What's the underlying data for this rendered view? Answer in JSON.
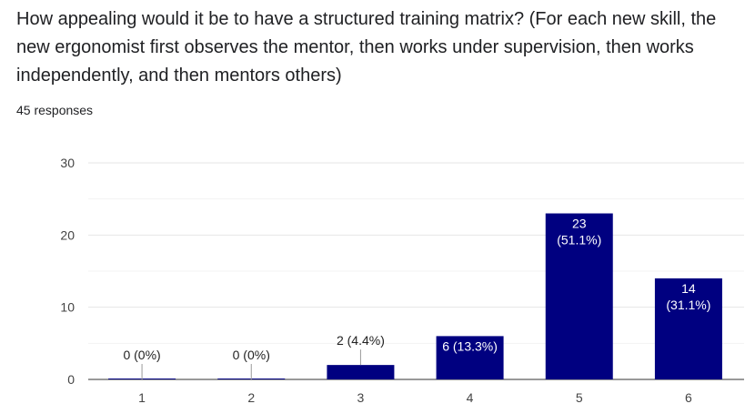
{
  "question": {
    "title": "How appealing would it be to have a structured training matrix? (For each new skill, the new ergonomist first observes the mentor, then works under supervision, then works independently, and then mentors others)",
    "response_count": "45 responses"
  },
  "colors": {
    "bar": "#000080",
    "grid": "#e6e6e6",
    "axis": "#333333",
    "text": "#202124"
  },
  "chart_data": {
    "type": "bar",
    "categories": [
      "1",
      "2",
      "3",
      "4",
      "5",
      "6"
    ],
    "values": [
      0,
      0,
      2,
      6,
      23,
      14
    ],
    "data_labels": [
      [
        "0 (0%)"
      ],
      [
        "0 (0%)"
      ],
      [
        "2 (4.4%)"
      ],
      [
        "6 (13.3%)"
      ],
      [
        "23",
        "(51.1%)"
      ],
      [
        "14",
        "(31.1%)"
      ]
    ],
    "ylim": [
      0,
      30
    ],
    "yticks": [
      0,
      10,
      20,
      30
    ],
    "grid": true,
    "legend": "none"
  }
}
